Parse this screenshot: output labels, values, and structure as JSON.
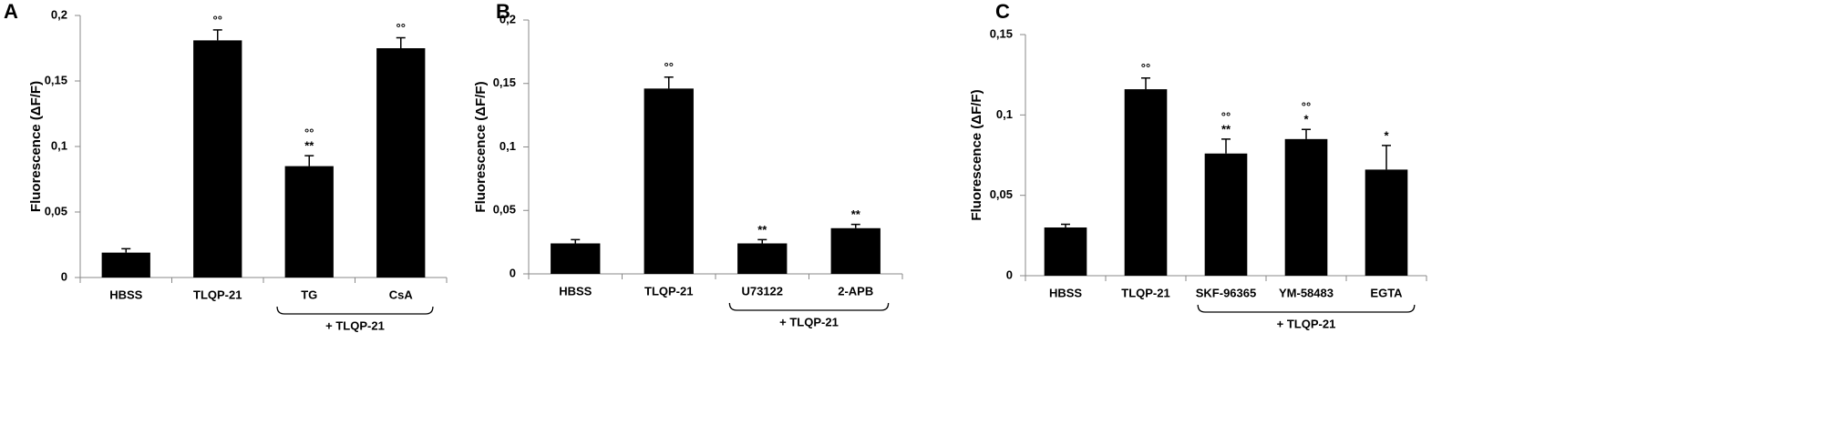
{
  "chart_data": [
    {
      "type": "bar",
      "panel": "A",
      "ylabel": "Fluorescence (ΔF/F)",
      "categories": [
        "HBSS",
        "TLQP-21",
        "TG",
        "CsA"
      ],
      "values": [
        0.019,
        0.181,
        0.085,
        0.175
      ],
      "errors": [
        0.003,
        0.008,
        0.008,
        0.008
      ],
      "significance": [
        [],
        [
          "°°"
        ],
        [
          "°°",
          "**"
        ],
        [
          "°°"
        ]
      ],
      "group_label": "+ TLQP-21",
      "color": "#000000",
      "ylim": [
        0,
        0.2
      ],
      "yticks": [
        0,
        {
          "value": 0.05,
          "label": "0,05"
        },
        {
          "value": 0.1,
          "label": "0,1"
        },
        {
          "value": 0.15,
          "label": "0,15"
        },
        {
          "value": 0.2,
          "label": "0,2"
        }
      ]
    },
    {
      "type": "bar",
      "panel": "B",
      "ylabel": "Fluorescence (ΔF/F)",
      "categories": [
        "HBSS",
        "TLQP-21",
        "U73122",
        "2-APB"
      ],
      "values": [
        0.024,
        0.146,
        0.024,
        0.036
      ],
      "errors": [
        0.003,
        0.009,
        0.003,
        0.003
      ],
      "significance": [
        [],
        [
          "°°"
        ],
        [
          "**"
        ],
        [
          "**"
        ]
      ],
      "group_label": "+ TLQP-21",
      "color": "#000000",
      "ylim": [
        0,
        0.2
      ],
      "yticks": [
        0,
        {
          "value": 0.05,
          "label": "0,05"
        },
        {
          "value": 0.1,
          "label": "0,1"
        },
        {
          "value": 0.15,
          "label": "0,15"
        },
        {
          "value": 0.2,
          "label": "0,2"
        }
      ]
    },
    {
      "type": "bar",
      "panel": "C",
      "ylabel": "Fluorescence (ΔF/F)",
      "categories": [
        "HBSS",
        "TLQP-21",
        "SKF-96365",
        "YM-58483",
        "EGTA"
      ],
      "values": [
        0.03,
        0.116,
        0.076,
        0.085,
        0.066
      ],
      "errors": [
        0.002,
        0.007,
        0.009,
        0.006,
        0.015
      ],
      "significance": [
        [],
        [
          "°°"
        ],
        [
          "°°",
          "**"
        ],
        [
          "°°",
          "*"
        ],
        [
          "*"
        ]
      ],
      "group_label": "+ TLQP-21",
      "color": "#000000",
      "ylim": [
        0,
        0.15
      ],
      "yticks": [
        0,
        {
          "value": 0.05,
          "label": "0,05"
        },
        {
          "value": 0.1,
          "label": "0,1"
        },
        {
          "value": 0.15,
          "label": "0,15"
        }
      ]
    }
  ]
}
